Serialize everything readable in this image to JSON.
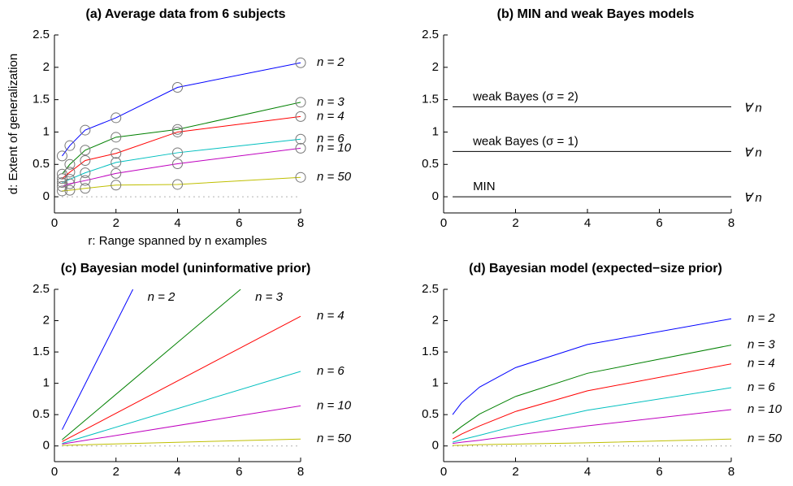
{
  "chart_data": [
    {
      "type": "line",
      "title": "(a) Average data from 6 subjects",
      "xlabel": "r: Range spanned by n examples",
      "ylabel": "d: Extent of generalization",
      "x": [
        0.25,
        0.5,
        1,
        2,
        4,
        8
      ],
      "marker": "circle",
      "baseline": "dotted",
      "xlim": [
        0,
        8
      ],
      "ylim": [
        -0.25,
        2.5
      ],
      "xticks": [
        0,
        2,
        4,
        6,
        8
      ],
      "yticks": [
        0,
        0.5,
        1,
        1.5,
        2,
        2.5
      ],
      "series": [
        {
          "name": "n = 2",
          "color": "#0000ff",
          "values": [
            0.63,
            0.79,
            1.03,
            1.22,
            1.69,
            2.07
          ]
        },
        {
          "name": "n = 3",
          "color": "#008000",
          "values": [
            0.35,
            0.5,
            0.72,
            0.92,
            1.04,
            1.46
          ]
        },
        {
          "name": "n = 4",
          "color": "#ff0000",
          "values": [
            0.28,
            0.38,
            0.56,
            0.67,
            1.0,
            1.24
          ]
        },
        {
          "name": "n = 6",
          "color": "#00bfbf",
          "values": [
            0.22,
            0.27,
            0.37,
            0.53,
            0.68,
            0.89
          ]
        },
        {
          "name": "n = 10",
          "color": "#bf00bf",
          "values": [
            0.16,
            0.2,
            0.25,
            0.36,
            0.51,
            0.75
          ]
        },
        {
          "name": "n = 50",
          "color": "#bfbf00",
          "values": [
            0.09,
            0.1,
            0.13,
            0.18,
            0.19,
            0.3
          ]
        }
      ]
    },
    {
      "type": "line",
      "title": "(b) MIN and weak Bayes models",
      "xlim": [
        0,
        8
      ],
      "ylim": [
        -0.25,
        2.5
      ],
      "xticks": [
        0,
        2,
        4,
        6,
        8
      ],
      "yticks": [
        0,
        0.5,
        1,
        1.5,
        2,
        2.5
      ],
      "series": [
        {
          "name": "weak Bayes (σ = 2)",
          "end_label": "∀ n",
          "color": "#000000",
          "x": [
            0.25,
            8
          ],
          "values": [
            1.39,
            1.39
          ]
        },
        {
          "name": "weak Bayes (σ = 1)",
          "end_label": "∀ n",
          "color": "#000000",
          "x": [
            0.25,
            8
          ],
          "values": [
            0.7,
            0.7
          ]
        },
        {
          "name": "MIN",
          "end_label": "∀ n",
          "color": "#000000",
          "x": [
            0.25,
            8
          ],
          "values": [
            0,
            0
          ]
        }
      ]
    },
    {
      "type": "line",
      "title": "(c) Bayesian model (uninformative prior)",
      "baseline": "dotted",
      "xlim": [
        0,
        8
      ],
      "ylim": [
        -0.25,
        2.5
      ],
      "xticks": [
        0,
        2,
        4,
        6,
        8
      ],
      "yticks": [
        0,
        0.5,
        1,
        1.5,
        2,
        2.5
      ],
      "series": [
        {
          "name": "n = 2",
          "color": "#0000ff",
          "x": [
            0.25,
            2.55
          ],
          "values": [
            0.26,
            2.5
          ]
        },
        {
          "name": "n = 3",
          "color": "#008000",
          "x": [
            0.25,
            6.05
          ],
          "values": [
            0.1,
            2.5
          ]
        },
        {
          "name": "n = 4",
          "color": "#ff0000",
          "x": [
            0.25,
            8
          ],
          "values": [
            0.07,
            2.07
          ]
        },
        {
          "name": "n = 6",
          "color": "#00bfbf",
          "x": [
            0.25,
            8
          ],
          "values": [
            0.04,
            1.19
          ]
        },
        {
          "name": "n = 10",
          "color": "#bf00bf",
          "x": [
            0.25,
            8
          ],
          "values": [
            0.03,
            0.64
          ]
        },
        {
          "name": "n = 50",
          "color": "#bfbf00",
          "x": [
            0.25,
            8
          ],
          "values": [
            0.01,
            0.11
          ]
        }
      ]
    },
    {
      "type": "line",
      "title": "(d) Bayesian model (expected−size prior)",
      "baseline": "dotted",
      "x": [
        0.25,
        0.5,
        1,
        2,
        4,
        8
      ],
      "xlim": [
        0,
        8
      ],
      "ylim": [
        -0.25,
        2.5
      ],
      "xticks": [
        0,
        2,
        4,
        6,
        8
      ],
      "yticks": [
        0,
        0.5,
        1,
        1.5,
        2,
        2.5
      ],
      "series": [
        {
          "name": "n = 2",
          "color": "#0000ff",
          "values": [
            0.5,
            0.69,
            0.94,
            1.25,
            1.62,
            2.03
          ]
        },
        {
          "name": "n = 3",
          "color": "#008000",
          "values": [
            0.2,
            0.31,
            0.51,
            0.79,
            1.16,
            1.61
          ]
        },
        {
          "name": "n = 4",
          "color": "#ff0000",
          "values": [
            0.11,
            0.19,
            0.32,
            0.55,
            0.88,
            1.31
          ]
        },
        {
          "name": "n = 6",
          "color": "#00bfbf",
          "values": [
            0.06,
            0.1,
            0.17,
            0.32,
            0.57,
            0.93
          ]
        },
        {
          "name": "n = 10",
          "color": "#bf00bf",
          "values": [
            0.04,
            0.06,
            0.09,
            0.17,
            0.32,
            0.58
          ]
        },
        {
          "name": "n = 50",
          "color": "#bfbf00",
          "values": [
            0.01,
            0.01,
            0.02,
            0.03,
            0.05,
            0.11
          ]
        }
      ]
    }
  ]
}
